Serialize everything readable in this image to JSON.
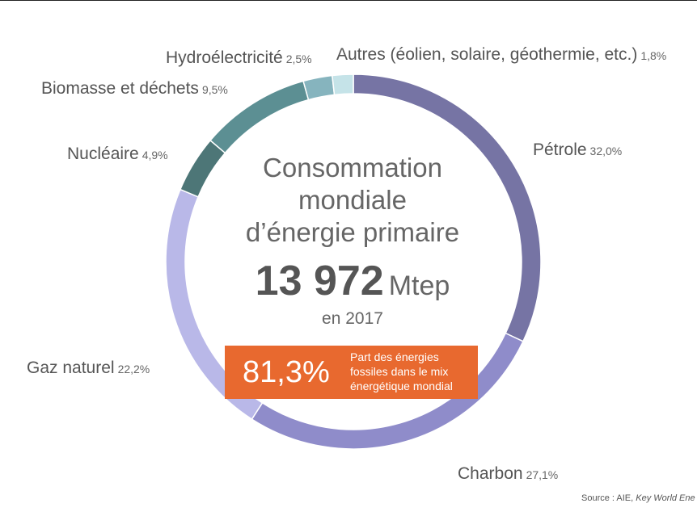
{
  "chart_data": {
    "type": "pie",
    "categories": [
      "Pétrole",
      "Charbon",
      "Gaz naturel",
      "Nucléaire",
      "Biomasse et déchets",
      "Hydroélectricité",
      "Autres (éolien, solaire, géothermie, etc.)"
    ],
    "values": [
      32.0,
      27.1,
      22.2,
      4.9,
      9.5,
      2.5,
      1.8
    ],
    "value_labels": [
      "32,0%",
      "27,1%",
      "22,2%",
      "4,9%",
      "9,5%",
      "2,5%",
      "1,8%"
    ],
    "colors": [
      "#7674a4",
      "#8f8cca",
      "#b9b8e8",
      "#4d7677",
      "#5c8f93",
      "#86b4be",
      "#c5e3e8"
    ],
    "donut": true
  },
  "center": {
    "title_lines": [
      "Consommation",
      "mondiale",
      "d’énergie primaire"
    ],
    "value": "13 972",
    "unit": "Mtep",
    "year": "en 2017"
  },
  "highlight": {
    "percent": "81,3%",
    "description": "Part des énergies fossiles dans le mix énergétique mondial",
    "color": "#e8692f"
  },
  "source": {
    "prefix": "Source : AIE, ",
    "title": "Key World Ene"
  }
}
